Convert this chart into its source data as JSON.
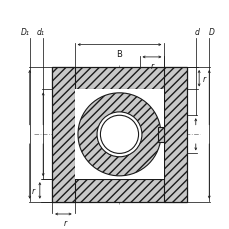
{
  "bg_color": "#ffffff",
  "line_color": "#1a1a1a",
  "hatch_color": "#333333",
  "dim_color": "#1a1a1a",
  "sq_l": 0.22,
  "sq_r": 0.82,
  "sq_t": 0.1,
  "sq_b": 0.7,
  "ring_t": 0.1,
  "seal_present": true,
  "labels": {
    "r_top": "r",
    "r_left": "r",
    "r_right": "r",
    "r_bot": "r",
    "B": "B",
    "D1": "D₁",
    "d1": "d₁",
    "d": "d",
    "D": "D"
  },
  "fontsize": 5.5
}
